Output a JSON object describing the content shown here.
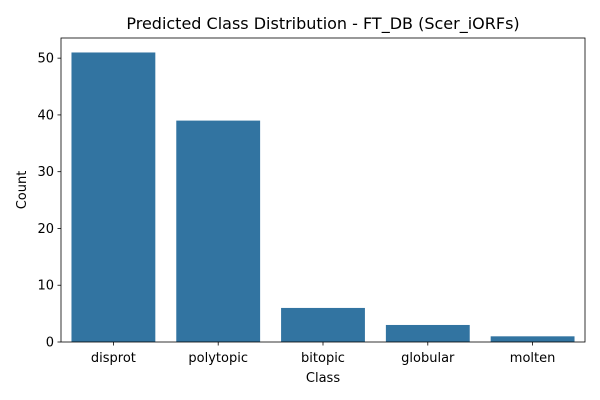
{
  "chart_data": {
    "type": "bar",
    "title": "Predicted Class Distribution - FT_DB (Scer_iORFs)",
    "xlabel": "Class",
    "ylabel": "Count",
    "categories": [
      "disprot",
      "polytopic",
      "bitopic",
      "globular",
      "molten"
    ],
    "values": [
      51,
      39,
      6,
      3,
      1
    ],
    "ylim": [
      0,
      53.55
    ],
    "yticks": [
      0,
      10,
      20,
      30,
      40,
      50
    ],
    "grid": false,
    "legend": "none",
    "bar_color": "#3274a1"
  }
}
